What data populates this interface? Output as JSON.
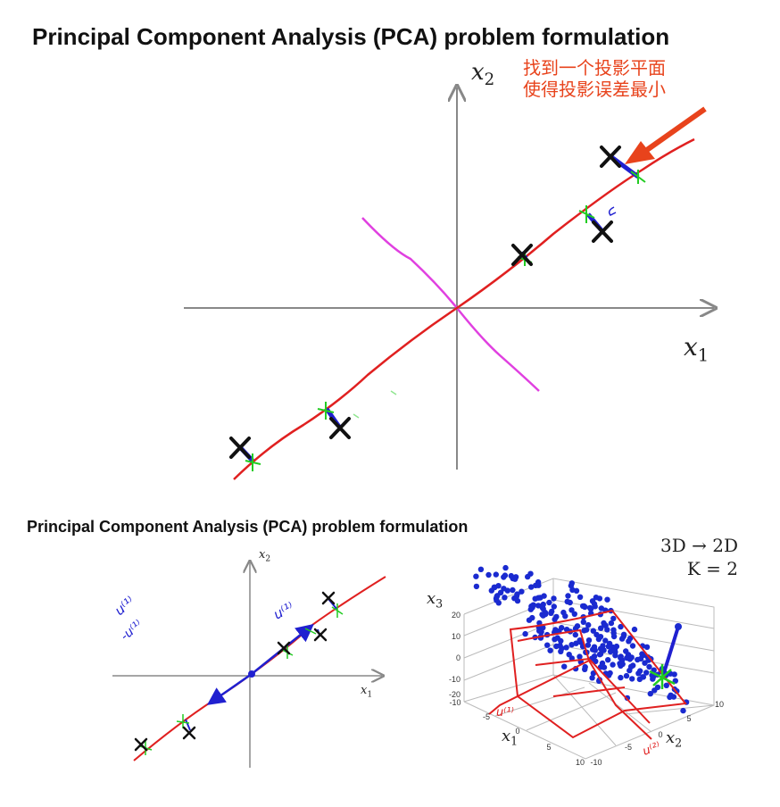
{
  "top_panel": {
    "title": "Principal Component Analysis (PCA) problem formulation",
    "x1_label": "x",
    "x1_sub": "1",
    "x2_label": "x",
    "x2_sub": "2",
    "annotation_line1": "找到一个投影平面",
    "annotation_line2": "使得投影误差最小"
  },
  "bottom_panel": {
    "title": "Principal Component Analysis (PCA) problem formulation",
    "dim_line1": "3D → 2D",
    "dim_line2": "K = 2",
    "left_plot": {
      "x1_label": "x",
      "x1_sub": "1",
      "x2_label": "x",
      "x2_sub": "2",
      "u1_label": "u⁽¹⁾",
      "neg_u1_label": "-u⁽¹⁾"
    },
    "right_plot": {
      "x3_label": "x",
      "x3_sub": "3",
      "x1_label": "x",
      "x1_sub": "1",
      "x2_label": "x",
      "x2_sub": "2",
      "z_ticks": [
        "20",
        "10",
        "0",
        "-10",
        "-20"
      ],
      "x1_ticks": [
        "-10",
        "-5",
        "0",
        "5",
        "10"
      ],
      "x2_ticks": [
        "-10",
        "-5",
        "0",
        "5",
        "10"
      ],
      "u1_label": "u⁽¹⁾",
      "u2_label": "u⁽²⁾"
    }
  },
  "colors": {
    "axis": "#888888",
    "fit_line": "#e02020",
    "perpendicular_line": "#e040e0",
    "projection": "#2020d0",
    "projected_point": "#22cc22",
    "data_point": "#111111",
    "annotation": "#e8431c",
    "scatter": "#1a2ad0"
  }
}
